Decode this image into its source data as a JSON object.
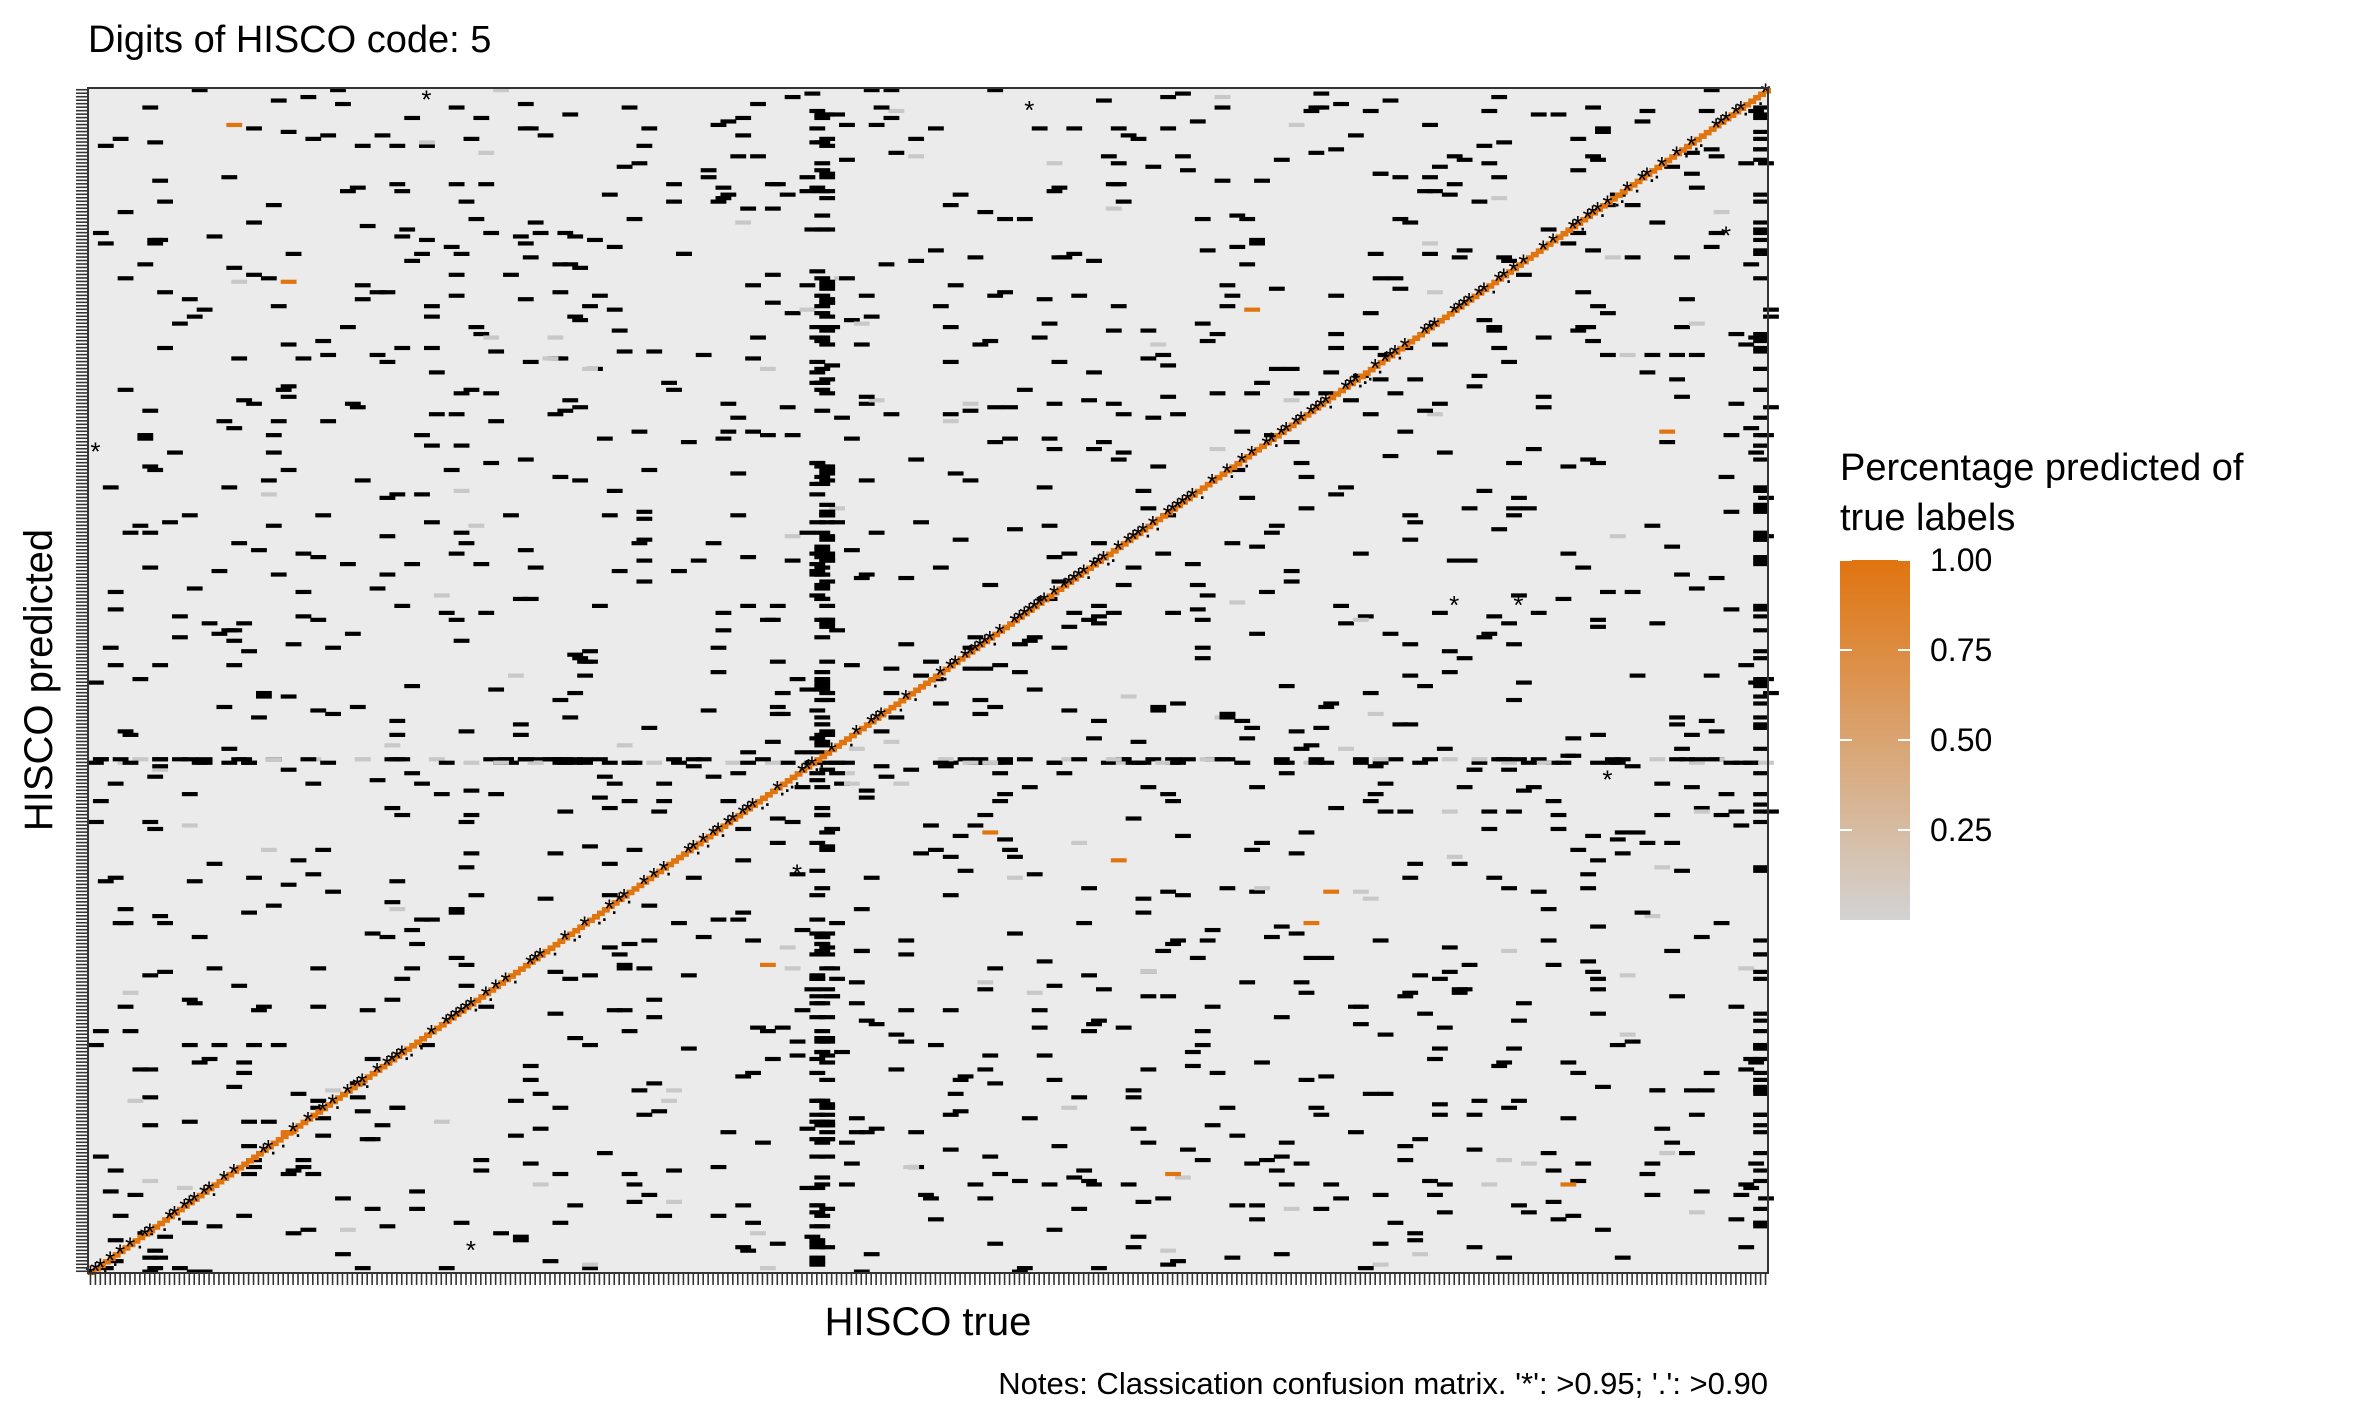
{
  "chart_data": {
    "type": "heatmap",
    "title": "Digits of HISCO code: 5",
    "xlabel": "HISCO true",
    "ylabel": "HISCO predicted",
    "note": "Notes: Classication confusion matrix. '*': >0.95; '.': >0.90",
    "legend": {
      "title_line1": "Percentage predicted of",
      "title_line2": "true labels",
      "ticks": [
        "1.00",
        "0.75",
        "0.50",
        "0.25"
      ],
      "tick_values": [
        1.0,
        0.75,
        0.5,
        0.25
      ],
      "range": [
        0,
        1
      ],
      "placement": "right"
    },
    "colors": {
      "low": "#d3d3d3",
      "high": "#e0740f",
      "panel": "#ebebeb",
      "cell": "#000000"
    },
    "n_classes": 340,
    "marker_high": "*",
    "marker_mid": "."
  }
}
